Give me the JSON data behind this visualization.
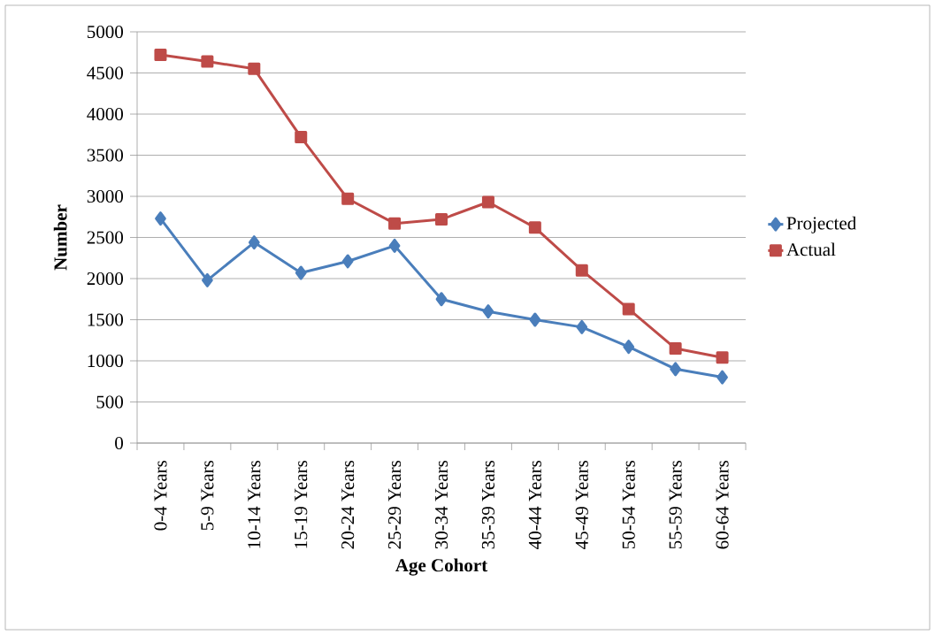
{
  "chart_data": {
    "type": "line",
    "xlabel": "Age Cohort",
    "ylabel": "Number",
    "categories": [
      "0-4 Years",
      "5-9 Years",
      "10-14 Years",
      "15-19 Years",
      "20-24 Years",
      "25-29 Years",
      "30-34 Years",
      "35-39 Years",
      "40-44 Years",
      "45-49 Years",
      "50-54 Years",
      "55-59 Years",
      "60-64 Years"
    ],
    "series": [
      {
        "name": "Projected",
        "color": "#4a7ebb",
        "marker": "diamond",
        "values": [
          2730,
          1980,
          2440,
          2070,
          2210,
          2400,
          1750,
          1600,
          1500,
          1410,
          1170,
          900,
          800
        ]
      },
      {
        "name": "Actual",
        "color": "#be4b48",
        "marker": "square",
        "values": [
          4720,
          4640,
          4550,
          3720,
          2970,
          2670,
          2720,
          2930,
          2620,
          2100,
          1630,
          1150,
          1040
        ]
      }
    ],
    "ylim": [
      0,
      5000
    ],
    "yticks": [
      0,
      500,
      1000,
      1500,
      2000,
      2500,
      3000,
      3500,
      4000,
      4500,
      5000
    ],
    "grid": "y",
    "legend": "right",
    "line_style": "solid"
  }
}
